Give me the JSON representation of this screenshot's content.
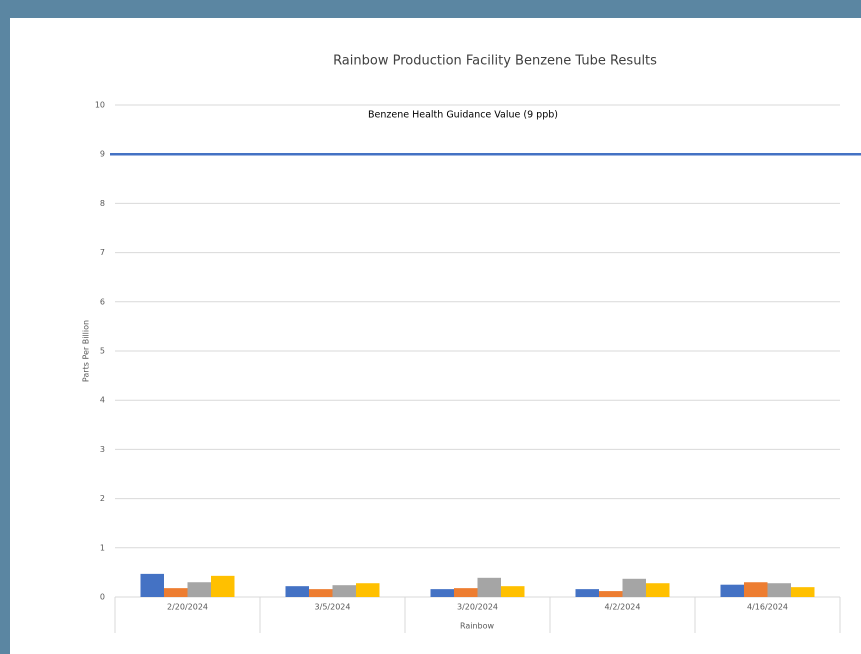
{
  "chart_data": {
    "type": "bar",
    "title": "Rainbow Production Facility Benzene Tube Results",
    "x_label": "Rainbow",
    "y_label": "Parts Per Billion",
    "categories": [
      "2/20/2024",
      "3/5/2024",
      "3/20/2024",
      "4/2/2024",
      "4/16/2024"
    ],
    "series": [
      {
        "color": "#4472c4",
        "values": [
          0.47,
          0.22,
          0.16,
          0.16,
          0.25
        ]
      },
      {
        "color": "#ed7d31",
        "values": [
          0.18,
          0.16,
          0.18,
          0.12,
          0.3
        ]
      },
      {
        "color": "#a5a5a5",
        "values": [
          0.3,
          0.24,
          0.39,
          0.37,
          0.28
        ]
      },
      {
        "color": "#ffc000",
        "values": [
          0.43,
          0.28,
          0.22,
          0.28,
          0.2
        ]
      }
    ],
    "reference_line": {
      "value": 9,
      "label": "Benzene Health Guidance Value (9 ppb)",
      "color": "#4472c4"
    },
    "ylim": [
      0,
      10
    ],
    "yticks": [
      0,
      1,
      2,
      3,
      4,
      5,
      6,
      7,
      8,
      9,
      10
    ],
    "grid": true
  }
}
